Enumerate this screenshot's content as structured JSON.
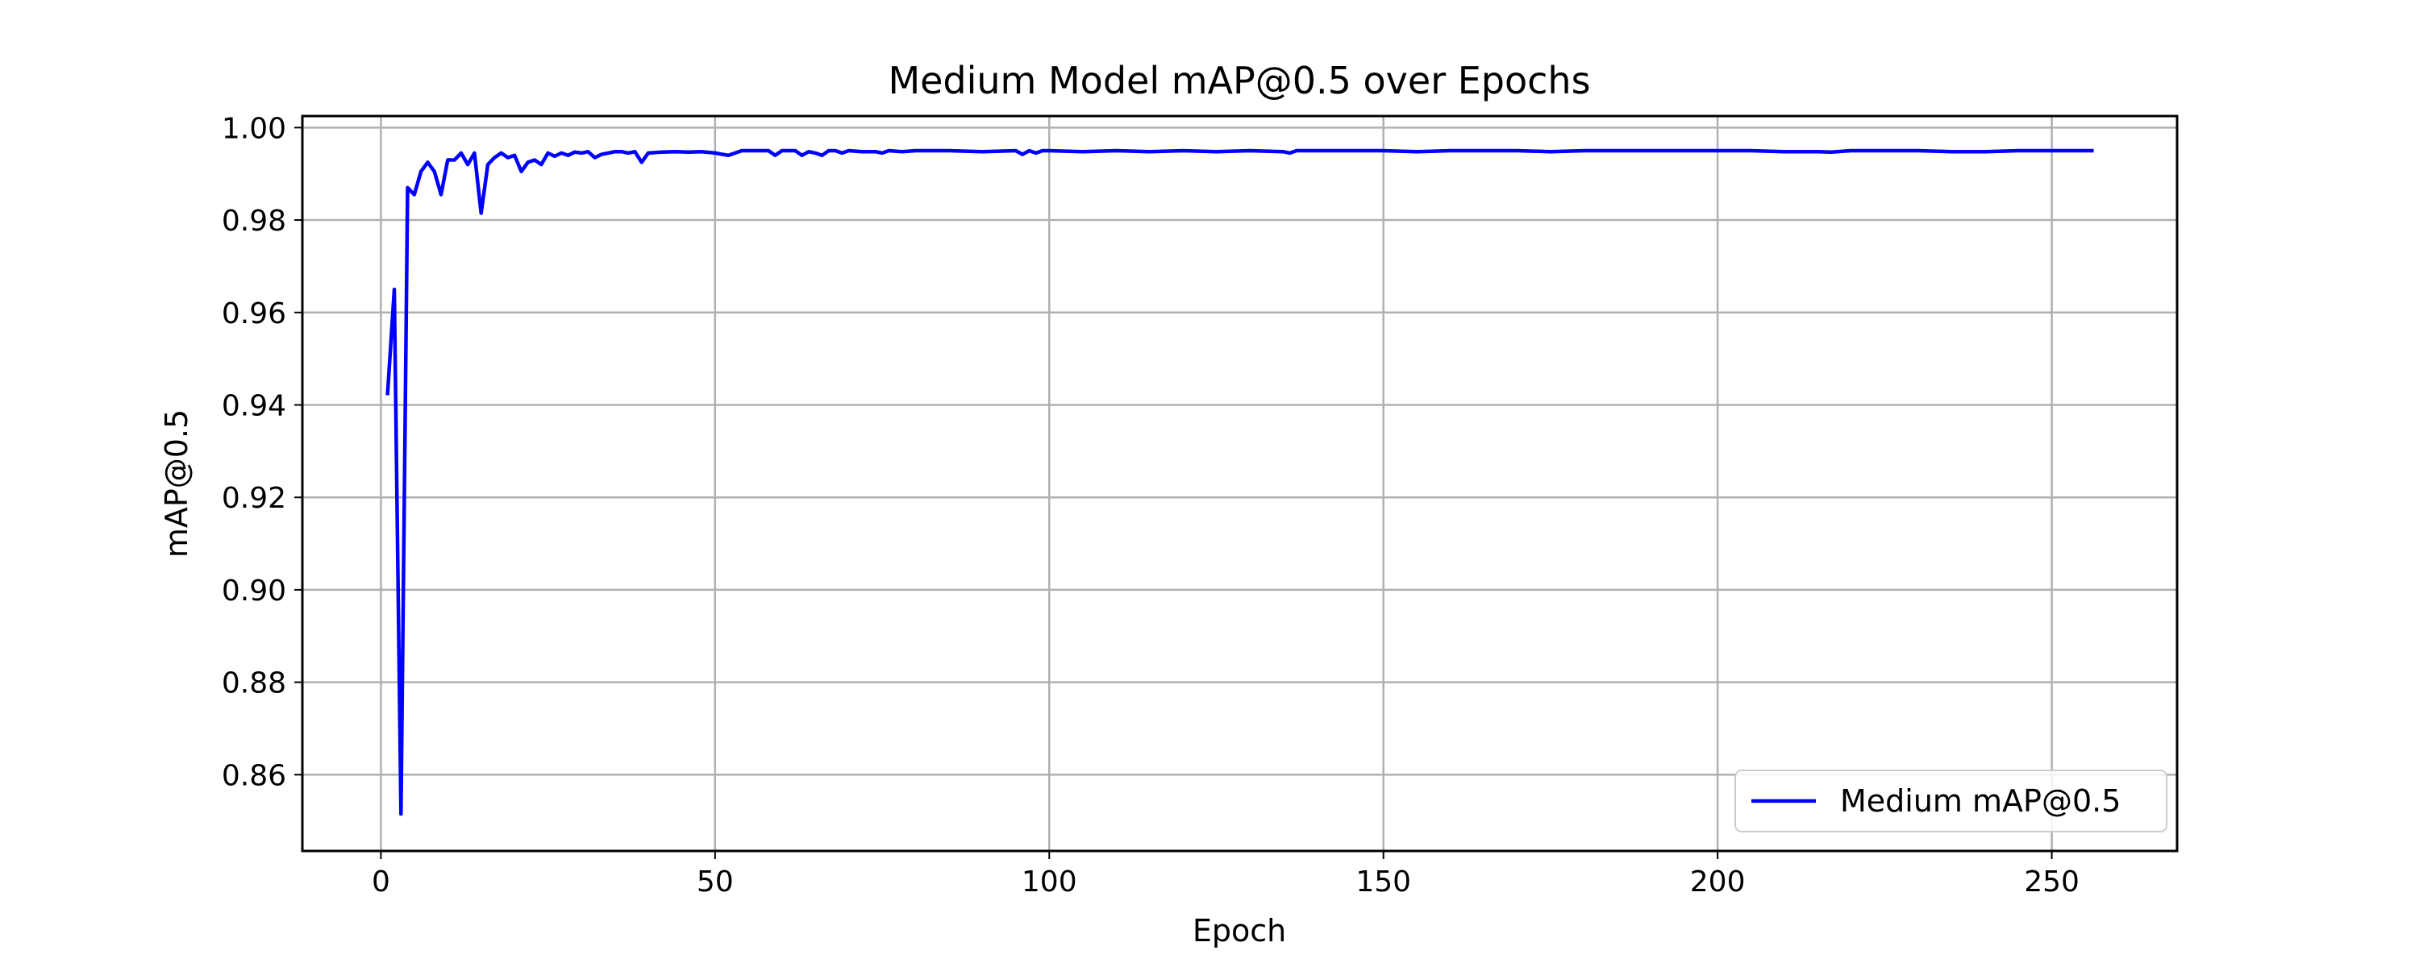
{
  "chart_data": {
    "type": "line",
    "title": "Medium Model mAP@0.5 over Epochs",
    "xlabel": "Epoch",
    "ylabel": "mAP@0.5",
    "xlim": [
      -11.75,
      268.75
    ],
    "ylim": [
      0.8435,
      1.0025
    ],
    "xticks": [
      0,
      50,
      100,
      150,
      200,
      250
    ],
    "yticks": [
      0.86,
      0.88,
      0.9,
      0.92,
      0.94,
      0.96,
      0.98,
      1.0
    ],
    "ytick_labels": [
      "0.86",
      "0.88",
      "0.90",
      "0.92",
      "0.94",
      "0.96",
      "0.98",
      "1.00"
    ],
    "grid": true,
    "legend_position": "lower-right",
    "colors": {
      "series": "#0000ff"
    },
    "series": [
      {
        "name": "Medium mAP@0.5",
        "x": [
          1,
          2,
          3,
          4,
          5,
          6,
          7,
          8,
          9,
          10,
          11,
          12,
          13,
          14,
          15,
          16,
          17,
          18,
          19,
          20,
          21,
          22,
          23,
          24,
          25,
          26,
          27,
          28,
          29,
          30,
          31,
          32,
          33,
          34,
          35,
          36,
          37,
          38,
          39,
          40,
          42,
          44,
          46,
          48,
          50,
          52,
          54,
          56,
          58,
          59,
          60,
          62,
          63,
          64,
          65,
          66,
          67,
          68,
          69,
          70,
          72,
          74,
          75,
          76,
          78,
          80,
          85,
          90,
          95,
          96,
          97,
          98,
          99,
          100,
          105,
          110,
          115,
          120,
          125,
          130,
          135,
          136,
          137,
          138,
          140,
          145,
          150,
          155,
          160,
          165,
          170,
          175,
          180,
          185,
          190,
          195,
          200,
          205,
          210,
          215,
          217,
          220,
          225,
          230,
          235,
          240,
          245,
          250,
          256
        ],
        "y": [
          0.9425,
          0.965,
          0.8515,
          0.987,
          0.9855,
          0.9905,
          0.9925,
          0.9905,
          0.9855,
          0.993,
          0.993,
          0.9945,
          0.992,
          0.9945,
          0.9815,
          0.992,
          0.9935,
          0.9945,
          0.9935,
          0.994,
          0.9905,
          0.9925,
          0.993,
          0.992,
          0.9945,
          0.9938,
          0.9945,
          0.994,
          0.9947,
          0.9945,
          0.9948,
          0.9935,
          0.9942,
          0.9945,
          0.9948,
          0.9948,
          0.9945,
          0.9948,
          0.9925,
          0.9945,
          0.9947,
          0.9948,
          0.9947,
          0.9948,
          0.9945,
          0.994,
          0.995,
          0.995,
          0.995,
          0.994,
          0.995,
          0.995,
          0.994,
          0.9948,
          0.9945,
          0.994,
          0.995,
          0.995,
          0.9945,
          0.995,
          0.9948,
          0.9948,
          0.9945,
          0.995,
          0.9948,
          0.995,
          0.995,
          0.9948,
          0.995,
          0.9942,
          0.995,
          0.9945,
          0.995,
          0.995,
          0.9948,
          0.995,
          0.9948,
          0.995,
          0.9948,
          0.995,
          0.9948,
          0.9945,
          0.995,
          0.995,
          0.995,
          0.995,
          0.995,
          0.9948,
          0.995,
          0.995,
          0.995,
          0.9948,
          0.995,
          0.995,
          0.995,
          0.995,
          0.995,
          0.995,
          0.9948,
          0.9948,
          0.9947,
          0.995,
          0.995,
          0.995,
          0.9948,
          0.9948,
          0.995,
          0.995,
          0.995
        ]
      }
    ]
  }
}
